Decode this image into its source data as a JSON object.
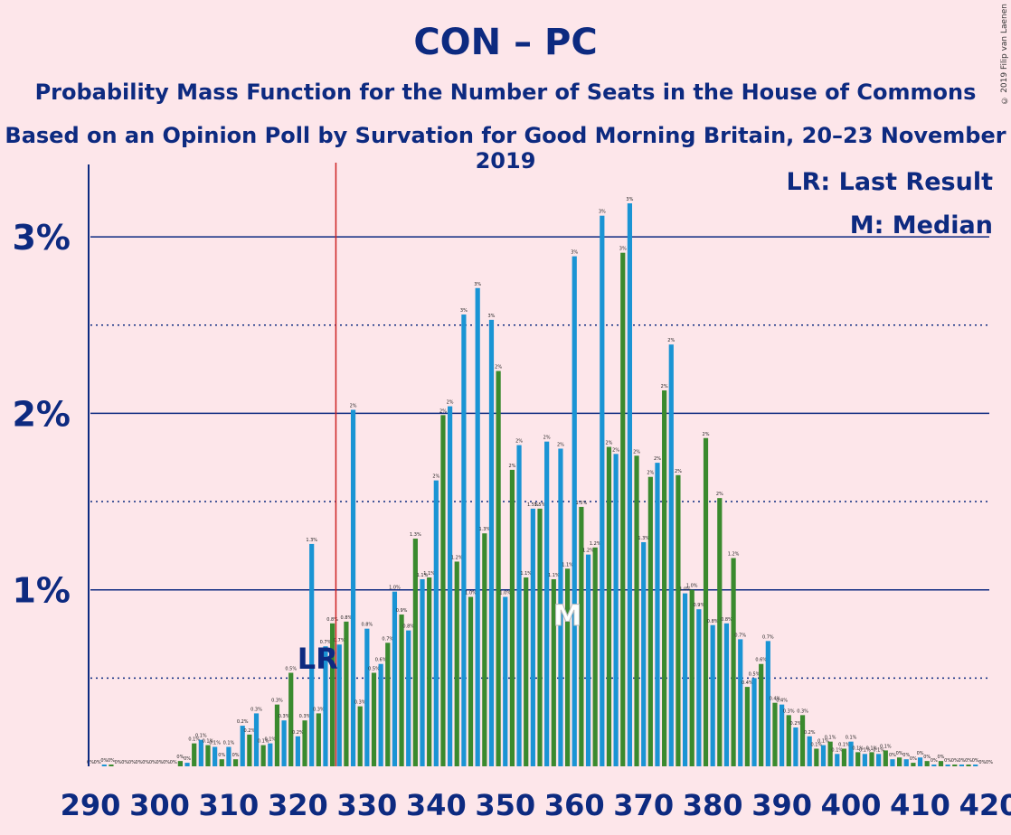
{
  "title": "CON – PC",
  "subtitle": "Probability Mass Function for the Number of Seats in the House of Commons",
  "subtitle2": "Based on an Opinion Poll by Survation for Good Morning Britain, 20–23 November 2019",
  "copyright": "© 2019 Filip van Laenen",
  "legend": {
    "last_result": "LR: Last Result",
    "median": "M: Median"
  },
  "markers": {
    "lr_label": "LR",
    "median_label": "M"
  },
  "colors": {
    "background": "#fde6ea",
    "blue": "#1a94d4",
    "green": "#3a8a2e",
    "axis": "#0d2a80",
    "last_result_line": "#cc2222"
  },
  "chart_data": {
    "type": "bar",
    "xlim": [
      290,
      420
    ],
    "ylim": [
      0,
      3.4
    ],
    "x_ticks": [
      "290",
      "300",
      "310",
      "320",
      "330",
      "340",
      "350",
      "360",
      "370",
      "380",
      "390",
      "400",
      "410",
      "420"
    ],
    "y_ticks": [
      {
        "value": 1,
        "label": "1%"
      },
      {
        "value": 2,
        "label": "2%"
      },
      {
        "value": 3,
        "label": "3%"
      }
    ],
    "minor_y_gridlines": [
      0.5,
      1.5,
      2.5
    ],
    "last_result": 326,
    "median": 359,
    "unit": "%",
    "x": [
      290,
      291,
      292,
      293,
      294,
      295,
      296,
      297,
      298,
      299,
      300,
      301,
      302,
      303,
      304,
      305,
      306,
      307,
      308,
      309,
      310,
      311,
      312,
      313,
      314,
      315,
      316,
      317,
      318,
      319,
      320,
      321,
      322,
      323,
      324,
      325,
      326,
      327,
      328,
      329,
      330,
      331,
      332,
      333,
      334,
      335,
      336,
      337,
      338,
      339,
      340,
      341,
      342,
      343,
      344,
      345,
      346,
      347,
      348,
      349,
      350,
      351,
      352,
      353,
      354,
      355,
      356,
      357,
      358,
      359,
      360,
      361,
      362,
      363,
      364,
      365,
      366,
      367,
      368,
      369,
      370,
      371,
      372,
      373,
      374,
      375,
      376,
      377,
      378,
      379,
      380,
      381,
      382,
      383,
      384,
      385,
      386,
      387,
      388,
      389,
      390,
      391,
      392,
      393,
      394,
      395,
      396,
      397,
      398,
      399,
      400,
      401,
      402,
      403,
      404,
      405,
      406,
      407,
      408,
      409,
      410,
      411,
      412,
      413,
      414,
      415,
      416,
      417,
      418,
      419,
      420
    ],
    "values": [
      0,
      0,
      0.01,
      0.01,
      0,
      0,
      0,
      0,
      0,
      0,
      0,
      0,
      0,
      0.03,
      0.02,
      0.13,
      0.15,
      0.12,
      0.11,
      0.04,
      0.11,
      0.04,
      0.23,
      0.18,
      0.3,
      0.12,
      0.13,
      0.35,
      0.26,
      0.53,
      0.17,
      0.26,
      1.26,
      0.3,
      0.68,
      0.81,
      0.69,
      0.82,
      2.02,
      0.34,
      0.78,
      0.53,
      0.58,
      0.7,
      0.99,
      0.86,
      0.77,
      1.29,
      1.06,
      1.07,
      1.62,
      1.99,
      2.04,
      1.16,
      2.56,
      0.96,
      2.71,
      1.32,
      2.53,
      2.24,
      0.96,
      1.68,
      1.82,
      1.07,
      1.46,
      1.46,
      1.84,
      1.06,
      1.8,
      1.12,
      2.89,
      1.47,
      1.2,
      1.24,
      3.12,
      1.81,
      1.77,
      2.91,
      3.19,
      1.76,
      1.27,
      1.64,
      1.72,
      2.13,
      2.39,
      1.65,
      0.98,
      1.0,
      0.89,
      1.86,
      0.8,
      1.52,
      0.81,
      1.18,
      0.72,
      0.45,
      0.5,
      0.58,
      0.71,
      0.36,
      0.35,
      0.29,
      0.22,
      0.29,
      0.17,
      0.1,
      0.12,
      0.14,
      0.07,
      0.1,
      0.14,
      0.08,
      0.07,
      0.08,
      0.07,
      0.09,
      0.04,
      0.05,
      0.04,
      0.02,
      0.05,
      0.03,
      0.01,
      0.03,
      0.01,
      0.01,
      0.01,
      0.01,
      0.01,
      0,
      0
    ],
    "labels": [
      "0%",
      "0%",
      "0%",
      "0%",
      "0%",
      "0%",
      "0%",
      "0%",
      "0%",
      "0%",
      "0%",
      "0%",
      "0%",
      "0%",
      "0%",
      "0.1%",
      "0.1%",
      "0.1%",
      "0.1%",
      "0%",
      "0.1%",
      "0%",
      "0.2%",
      "0.2%",
      "0.3%",
      "0.1%",
      "0.1%",
      "0.3%",
      "0.3%",
      "0.5%",
      "0.2%",
      "0.3%",
      "1.3%",
      "0.3%",
      "0.7%",
      "0.8%",
      "0.7%",
      "0.8%",
      "2%",
      "0.3%",
      "0.8%",
      "0.5%",
      "0.6%",
      "0.7%",
      "1.0%",
      "0.9%",
      "0.8%",
      "1.3%",
      "1.1%",
      "1.1%",
      "2%",
      "2%",
      "2%",
      "1.2%",
      "3%",
      "1.0%",
      "3%",
      "1.3%",
      "3%",
      "2%",
      "1.0%",
      "2%",
      "2%",
      "1.1%",
      "1.5%",
      "1.5%",
      "2%",
      "1.1%",
      "2%",
      "1.1%",
      "3%",
      "1.5%",
      "1.2%",
      "1.2%",
      "3%",
      "2%",
      "2%",
      "3%",
      "3%",
      "2%",
      "1.3%",
      "2%",
      "2%",
      "2%",
      "2%",
      "2%",
      "1.0%",
      "1.0%",
      "0.9%",
      "2%",
      "0.8%",
      "2%",
      "0.8%",
      "1.2%",
      "0.7%",
      "0.4%",
      "0.5%",
      "0.6%",
      "0.7%",
      "0.4%",
      "0.4%",
      "0.3%",
      "0.2%",
      "0.3%",
      "0.2%",
      "0.1%",
      "0.1%",
      "0.1%",
      "0.1%",
      "0.1%",
      "0.1%",
      "0.1%",
      "0.1%",
      "0.1%",
      "0.1%",
      "0.1%",
      "0%",
      "0%",
      "0%",
      "0%",
      "0%",
      "0%",
      "0%",
      "0%",
      "0%",
      "0%",
      "0%",
      "0%",
      "0%",
      "0%",
      "0%"
    ]
  }
}
